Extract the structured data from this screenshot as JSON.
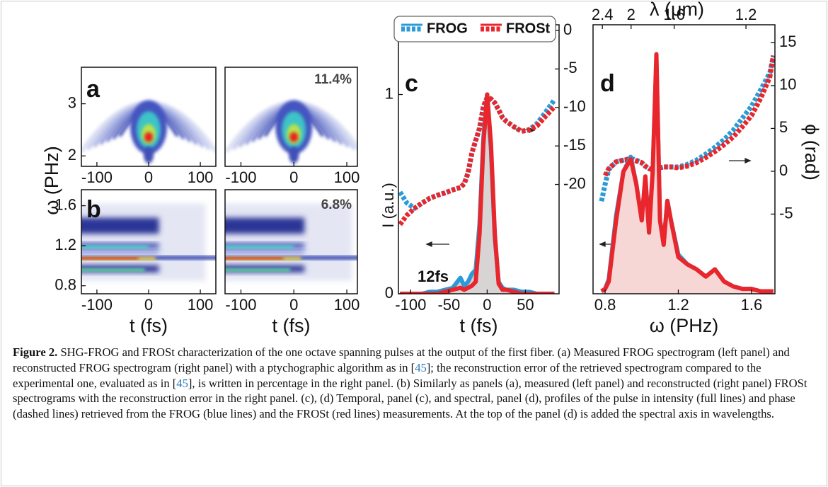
{
  "chart_data": [
    {
      "type": "heatmap",
      "label": "a",
      "ylabel": "ω (PHz)",
      "xlim": [
        -130,
        130
      ],
      "xticks": [
        -100,
        0,
        100
      ],
      "ylim": [
        1.8,
        3.7
      ],
      "yticks": [
        2,
        3
      ]
    },
    {
      "type": "heatmap",
      "annotation": "11.4%",
      "xlim": [
        -130,
        120
      ],
      "xticks": [
        -100,
        0,
        100
      ],
      "ylim": [
        1.8,
        3.7
      ]
    },
    {
      "type": "heatmap",
      "label": "b",
      "xlabel": "t (fs)",
      "xlim": [
        -130,
        130
      ],
      "xticks": [
        -100,
        0,
        100
      ],
      "ylim": [
        0.72,
        1.76
      ],
      "yticks": [
        0.8,
        1.2,
        1.6
      ]
    },
    {
      "type": "heatmap",
      "annotation": "6.8%",
      "xlabel": "t (fs)",
      "xlim": [
        -130,
        120
      ],
      "xticks": [
        -100,
        0,
        100
      ],
      "ylim": [
        0.72,
        1.76
      ]
    },
    {
      "type": "line",
      "label": "c",
      "annotation": "12fs",
      "xlabel": "t (fs)",
      "ylabel": "I (a.u.)",
      "xlim": [
        -116,
        94
      ],
      "xticks": [
        -100,
        -50,
        0,
        50
      ],
      "ylim": [
        0,
        1.35
      ],
      "yticks": [
        0,
        1
      ],
      "y2lim": [
        -34.2,
        0.74
      ],
      "y2ticks": [
        0,
        -5,
        -10,
        -15,
        -20
      ],
      "x": [
        -114,
        -105,
        -95,
        -85,
        -75,
        -65,
        -55,
        -45,
        -35,
        -30,
        -25,
        -20,
        -15,
        -10,
        -5,
        0,
        5,
        10,
        15,
        20,
        25,
        35,
        45,
        55,
        65,
        75,
        88
      ],
      "series": [
        {
          "name": "FROG",
          "color": "#2b9ad6",
          "axis": "y2",
          "style": "dashed",
          "values": [
            -21.0,
            -22.4,
            -23.1,
            -22.4,
            -21.8,
            -21.4,
            -21.1,
            -20.7,
            -20.4,
            -19.9,
            -18.5,
            -15.9,
            -14.3,
            -12.7,
            -9.9,
            -8.7,
            -8.9,
            -9.4,
            -10.3,
            -11.3,
            -11.8,
            -12.5,
            -13.1,
            -12.9,
            -12.1,
            -10.8,
            -9.0
          ]
        },
        {
          "name": "FROSt",
          "color": "#e8262c",
          "axis": "y2",
          "style": "dashed",
          "values": [
            -25.2,
            -24.0,
            -23.1,
            -22.4,
            -21.8,
            -21.4,
            -21.1,
            -20.7,
            -20.4,
            -19.9,
            -18.5,
            -15.9,
            -14.3,
            -12.7,
            -9.9,
            -8.7,
            -8.9,
            -9.4,
            -10.3,
            -11.3,
            -11.8,
            -12.5,
            -13.1,
            -12.9,
            -12.4,
            -11.3,
            -9.9
          ]
        },
        {
          "name": "FROG",
          "color": "#2b9ad6",
          "style": "solid",
          "fill": "#d9d4d4",
          "values": [
            0,
            0,
            0,
            0,
            0.01,
            0.01,
            0.02,
            0.03,
            0.08,
            0.04,
            0.06,
            0.1,
            0.12,
            0.35,
            0.78,
            1.0,
            0.72,
            0.28,
            0.06,
            0.03,
            0.02,
            0.02,
            0.01,
            0.01,
            0,
            0,
            0
          ]
        },
        {
          "name": "FROSt",
          "color": "#e8262c",
          "style": "solid",
          "values": [
            0,
            0,
            0,
            0,
            0,
            0,
            0.01,
            0.02,
            0.03,
            0.02,
            0.03,
            0.04,
            0.06,
            0.3,
            0.75,
            1.0,
            0.75,
            0.3,
            0.05,
            0.02,
            0.02,
            0.01,
            0,
            0,
            0,
            0,
            0
          ]
        }
      ]
    },
    {
      "type": "line",
      "label": "d",
      "xlabel": "ω (PHz)",
      "y2label": "ϕ (rad)",
      "x2label": "λ (μm)",
      "xlim": [
        0.734,
        1.728
      ],
      "xticks": [
        0.8,
        1.2,
        1.6
      ],
      "x2ticks": [
        2.4,
        2,
        1.6,
        1.2
      ],
      "ylim": [
        0,
        1.1
      ],
      "y2lim": [
        -14.3,
        17.1
      ],
      "y2ticks": [
        15,
        10,
        5,
        0,
        -5
      ],
      "x": [
        0.78,
        0.8,
        0.82,
        0.86,
        0.9,
        0.94,
        0.97,
        1.0,
        1.02,
        1.04,
        1.06,
        1.08,
        1.1,
        1.12,
        1.14,
        1.16,
        1.2,
        1.25,
        1.3,
        1.35,
        1.4,
        1.45,
        1.5,
        1.55,
        1.6,
        1.65,
        1.7,
        1.72
      ],
      "series": [
        {
          "name": "FROG",
          "color": "#2b9ad6",
          "axis": "y2",
          "style": "dashed",
          "values": [
            -3.5,
            -1.5,
            0.2,
            1.1,
            1.3,
            1.5,
            1.3,
            1.0,
            0.6,
            0.3,
            0.2,
            0.3,
            0.4,
            0.5,
            0.5,
            0.5,
            0.5,
            0.8,
            1.3,
            2.0,
            2.8,
            3.7,
            4.8,
            6.2,
            7.6,
            9.5,
            11.5,
            13.5
          ]
        },
        {
          "name": "FROSt",
          "color": "#e8262c",
          "axis": "y2",
          "style": "dashed",
          "values": [
            null,
            -0.5,
            0.3,
            1.1,
            1.3,
            1.4,
            1.2,
            1.0,
            0.6,
            0.3,
            0.2,
            0.3,
            0.4,
            0.5,
            0.5,
            0.5,
            0.4,
            0.6,
            1.0,
            1.6,
            2.3,
            3.1,
            4.0,
            5.2,
            6.5,
            8.5,
            11,
            13.5
          ]
        },
        {
          "name": "FROG",
          "color": "#2b9ad6",
          "style": "solid",
          "values": [
            0.01,
            0.02,
            0.06,
            0.32,
            0.5,
            0.56,
            0.45,
            0.3,
            0.47,
            0.26,
            0.5,
            0.95,
            0.3,
            0.21,
            0.38,
            0.3,
            0.16,
            0.12,
            0.1,
            0.07,
            0.1,
            0.05,
            0.03,
            0.02,
            0.02,
            0.01,
            0.01,
            0.01
          ]
        },
        {
          "name": "FROSt",
          "color": "#e8262c",
          "style": "solid",
          "fill": "#f7d6d6",
          "values": [
            0.01,
            0.02,
            0.05,
            0.3,
            0.5,
            0.55,
            0.45,
            0.3,
            0.48,
            0.25,
            0.5,
            0.98,
            0.3,
            0.2,
            0.38,
            0.3,
            0.15,
            0.12,
            0.1,
            0.07,
            0.1,
            0.05,
            0.03,
            0.02,
            0.02,
            0.01,
            0.01,
            0.01
          ]
        }
      ]
    }
  ],
  "caption": {
    "label": "Figure 2.",
    "body": [
      " SHG-FROG and FROSt characterization of the one octave spanning pulses at the output of the first fiber. (a) Measured FROG spectrogram (left panel) and reconstructed FROG spectrogram (right panel) with a ptychographic algorithm as in [",
      "45",
      "]; the reconstruction error of the retrieved spectrogram compared to the experimental one, evaluated as in [",
      "45",
      "], is written in percentage in the right panel. (b) Similarly as panels (a), measured (left panel) and reconstructed (right panel) FROSt spectrograms with the reconstruction error in the right panel. (c), (d) Temporal, panel (c), and spectral, panel (d), profiles of the pulse in intensity (full lines) and phase (dashed lines) retrieved from the FROG (blue lines) and the FROSt (red lines) measurements. At the top of the panel (d) is added the spectral axis in wavelengths."
    ]
  }
}
